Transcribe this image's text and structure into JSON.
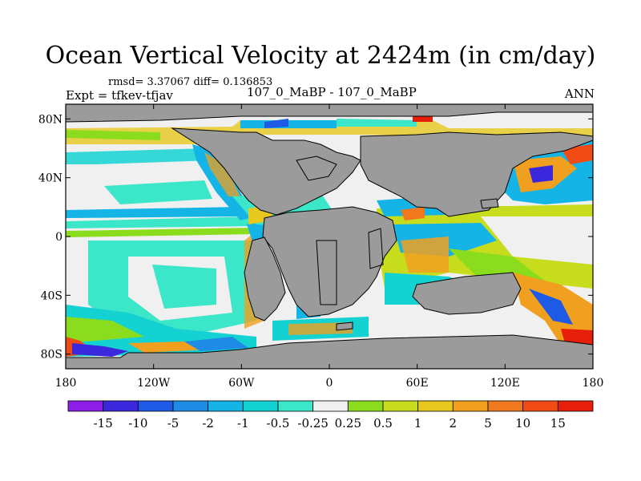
{
  "chart_data": {
    "type": "heatmap",
    "title": "Ocean Vertical Velocity at 2424m (in cm/day)",
    "stats": "rmsd= 3.37067 diff= 0.136853",
    "experiment": "Expt = tfkev-tfjav",
    "run": "107_0_MaBP - 107_0_MaBP",
    "season": "ANN",
    "x_ticks": [
      "180",
      "120W",
      "60W",
      "0",
      "60E",
      "120E",
      "180"
    ],
    "x_tick_values": [
      -180,
      -120,
      -60,
      0,
      60,
      120,
      180
    ],
    "y_ticks": [
      "80N",
      "40N",
      "0",
      "40S",
      "80S"
    ],
    "y_tick_values": [
      80,
      40,
      0,
      -40,
      -80
    ],
    "xlim": [
      -180,
      180
    ],
    "ylim": [
      -90,
      90
    ],
    "colorbar": {
      "labels": [
        "-15",
        "-10",
        "-5",
        "-2",
        "-1",
        "-0.5",
        "-0.25",
        "0.25",
        "0.5",
        "1",
        "2",
        "5",
        "10",
        "15"
      ],
      "colors": [
        "#8c1ee6",
        "#3c28dc",
        "#1e5ae6",
        "#1e8ce6",
        "#14b4e6",
        "#14d2d2",
        "#3ce6c8",
        "#f0f0f0",
        "#8cdc1e",
        "#c8dc1e",
        "#e6c81e",
        "#f0a01e",
        "#f0781e",
        "#f04b14",
        "#e61e0a"
      ]
    },
    "colors": {
      "land": "#9b9b9b",
      "coast": "#000000",
      "background": "#f0f0f0"
    }
  }
}
